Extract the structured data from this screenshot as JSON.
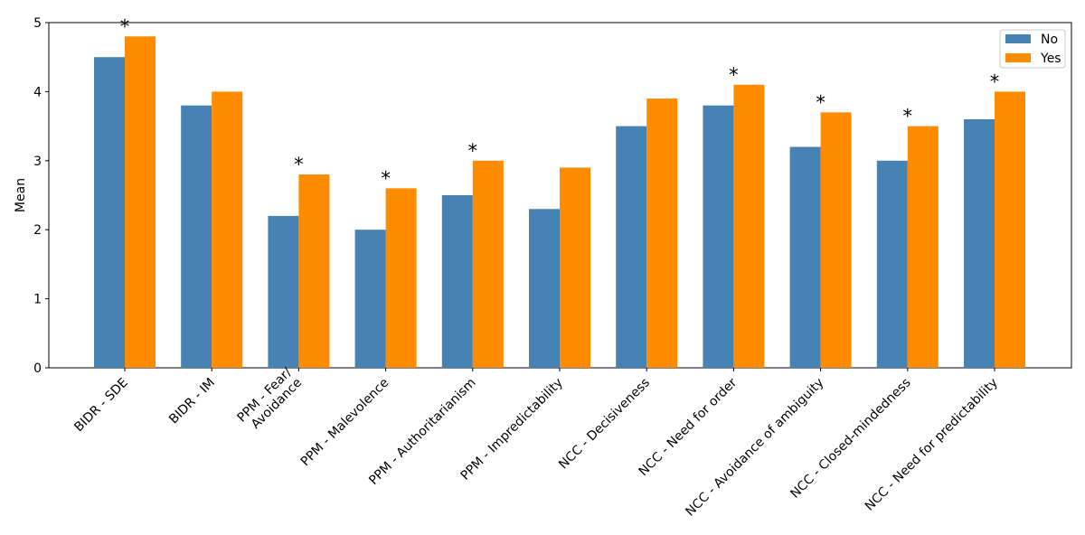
{
  "chart_data": {
    "type": "bar",
    "ylabel": "Mean",
    "xlabel": "",
    "title": "",
    "ylim": [
      0,
      5
    ],
    "yticks": [
      "0",
      "1",
      "2",
      "3",
      "4",
      "5"
    ],
    "categories": [
      "BIDR - SDE",
      "BIDR - IM",
      "PPM - Fear/\nAvoidance",
      "PPM - Malevolence",
      "PPM - Authoritarianism",
      "PPM - Impredictability",
      "NCC - Decisiveness",
      "NCC - Need for order",
      "NCC - Avoidance of ambiguity",
      "NCC - Closed-mindedness",
      "NCC - Need for predictability"
    ],
    "series": [
      {
        "name": "No",
        "color": "#4682b4",
        "values": [
          4.5,
          3.8,
          2.2,
          2.0,
          2.5,
          2.3,
          3.5,
          3.8,
          3.2,
          3.0,
          3.6
        ]
      },
      {
        "name": "Yes",
        "color": "#ff8c00",
        "values": [
          4.8,
          4.0,
          2.8,
          2.6,
          3.0,
          2.9,
          3.9,
          4.1,
          3.7,
          3.5,
          4.0
        ]
      }
    ],
    "significance_marker": "*",
    "significant": [
      true,
      false,
      true,
      true,
      true,
      false,
      false,
      true,
      true,
      true,
      true
    ],
    "legend_position": "top-right",
    "grid": false
  }
}
